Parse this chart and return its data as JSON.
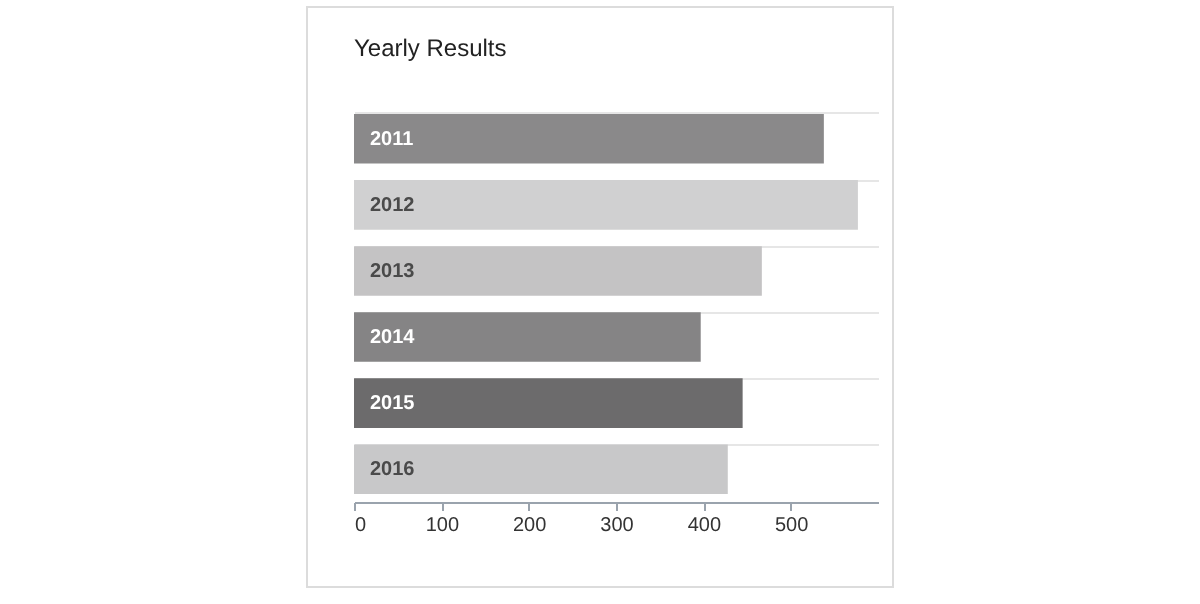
{
  "chart_data": {
    "type": "bar",
    "title": "Yearly Results",
    "orientation": "horizontal",
    "categories": [
      "2011",
      "2012",
      "2013",
      "2014",
      "2015",
      "2016"
    ],
    "values": [
      538,
      577,
      467,
      397,
      445,
      428
    ],
    "colors": [
      "#8a898a",
      "#d0d0d1",
      "#c4c3c4",
      "#858485",
      "#6c6b6c",
      "#c8c8c9"
    ],
    "xlim": [
      0,
      600
    ],
    "xticks": [
      0,
      100,
      200,
      300,
      400,
      500
    ],
    "grid": "y",
    "tick_labels": "x"
  }
}
